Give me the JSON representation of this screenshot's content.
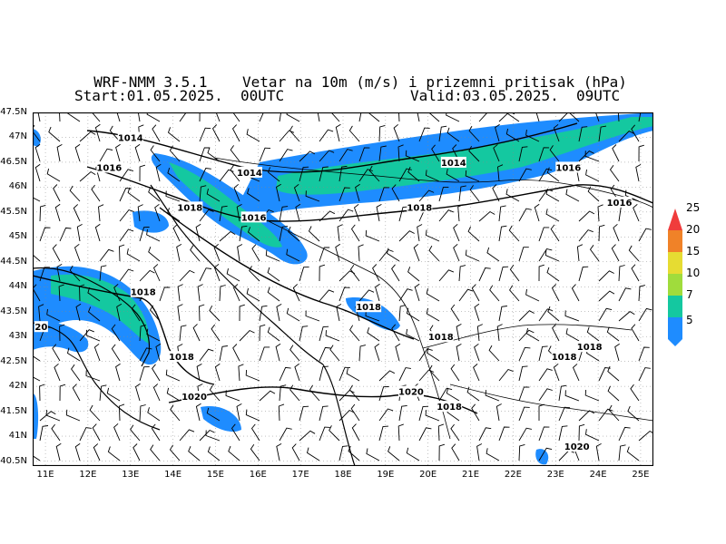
{
  "title": {
    "model": "WRF-NMM 3.5.1",
    "variable": "Vetar na 10m (m/s) i prizemni pritisak (hPa)",
    "start": "Start:01.05.2025.  00UTC",
    "valid": "Valid:03.05.2025.  09UTC"
  },
  "axes": {
    "lon_ticks": [
      "11E",
      "12E",
      "13E",
      "14E",
      "15E",
      "16E",
      "17E",
      "18E",
      "19E",
      "20E",
      "21E",
      "22E",
      "23E",
      "24E",
      "25E"
    ],
    "lat_ticks": [
      "47.5N",
      "47N",
      "46.5N",
      "46N",
      "45.5N",
      "45N",
      "44.5N",
      "44N",
      "43.5N",
      "43N",
      "42.5N",
      "42N",
      "41.5N",
      "41N",
      "40.5N"
    ],
    "lon_range": [
      10.7,
      25.3
    ],
    "lat_range": [
      40.4,
      47.5
    ]
  },
  "legend": {
    "levels": [
      "5",
      "7",
      "10",
      "15",
      "20",
      "25"
    ],
    "colors": [
      "#1e8cff",
      "#14c8a0",
      "#a0dc3c",
      "#e6dc32",
      "#f08228",
      "#f03c3c"
    ]
  },
  "isobar_labels": [
    {
      "text": "1014",
      "lon": 13.0,
      "lat": 47.0
    },
    {
      "text": "1016",
      "lon": 12.5,
      "lat": 46.4
    },
    {
      "text": "1014",
      "lon": 15.8,
      "lat": 46.3
    },
    {
      "text": "1014",
      "lon": 20.6,
      "lat": 46.5
    },
    {
      "text": "1016",
      "lon": 23.3,
      "lat": 46.4
    },
    {
      "text": "1018",
      "lon": 14.4,
      "lat": 45.6
    },
    {
      "text": "1016",
      "lon": 15.9,
      "lat": 45.4
    },
    {
      "text": "1018",
      "lon": 19.8,
      "lat": 45.6
    },
    {
      "text": "1016",
      "lon": 24.5,
      "lat": 45.7
    },
    {
      "text": "1018",
      "lon": 13.3,
      "lat": 43.9
    },
    {
      "text": "1018",
      "lon": 18.6,
      "lat": 43.6
    },
    {
      "text": "20",
      "lon": 10.9,
      "lat": 43.2
    },
    {
      "text": "1018",
      "lon": 20.3,
      "lat": 43.0
    },
    {
      "text": "1018",
      "lon": 23.8,
      "lat": 42.8
    },
    {
      "text": "1018",
      "lon": 14.2,
      "lat": 42.6
    },
    {
      "text": "1018",
      "lon": 23.2,
      "lat": 42.6
    },
    {
      "text": "1020",
      "lon": 14.5,
      "lat": 41.8
    },
    {
      "text": "1020",
      "lon": 19.6,
      "lat": 41.9
    },
    {
      "text": "1018",
      "lon": 20.5,
      "lat": 41.6
    },
    {
      "text": "1020",
      "lon": 23.5,
      "lat": 40.8
    }
  ]
}
